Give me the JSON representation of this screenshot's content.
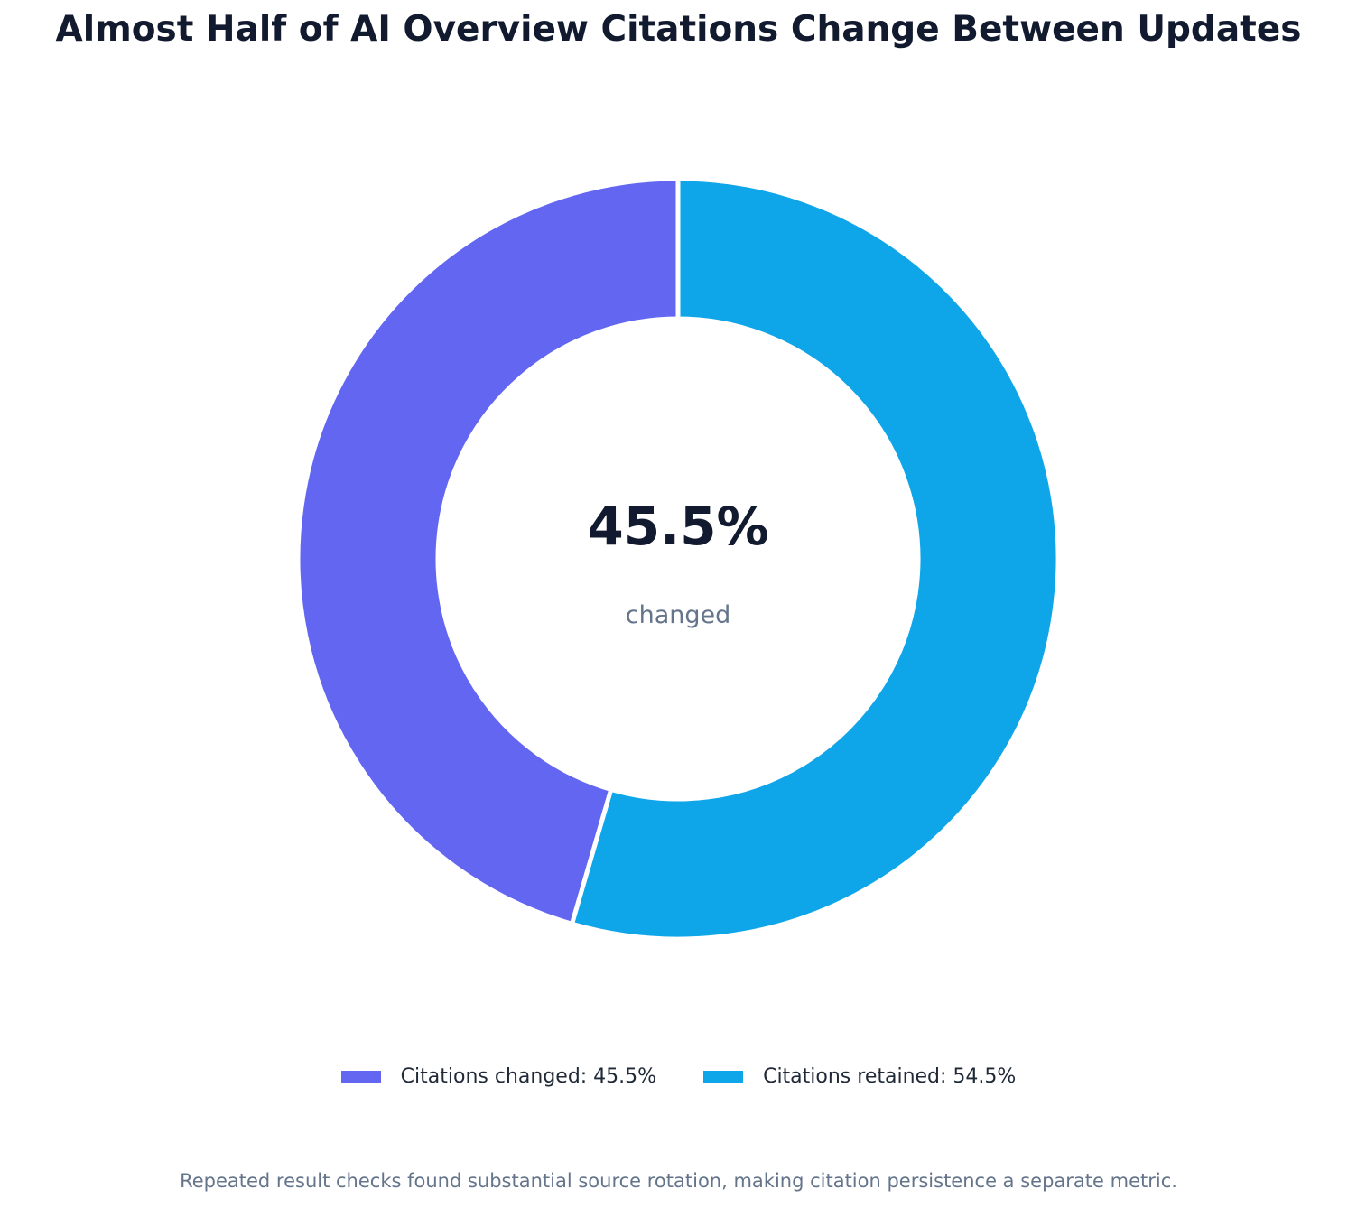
{
  "chart_data": {
    "type": "pie",
    "title": "Almost Half of AI Overview Citations Change Between Updates",
    "slices": [
      {
        "label": "Citations changed",
        "legend_text": "Citations changed: 45.5%",
        "value": 45.5,
        "color": "#6366f1"
      },
      {
        "label": "Citations retained",
        "legend_text": "Citations retained: 54.5%",
        "value": 54.5,
        "color": "#0ea5e9"
      }
    ],
    "center": {
      "value": "45.5%",
      "label": "changed"
    },
    "legend_position": "bottom",
    "footnote": "Repeated result checks found substantial source rotation, making citation persistence a separate metric."
  }
}
